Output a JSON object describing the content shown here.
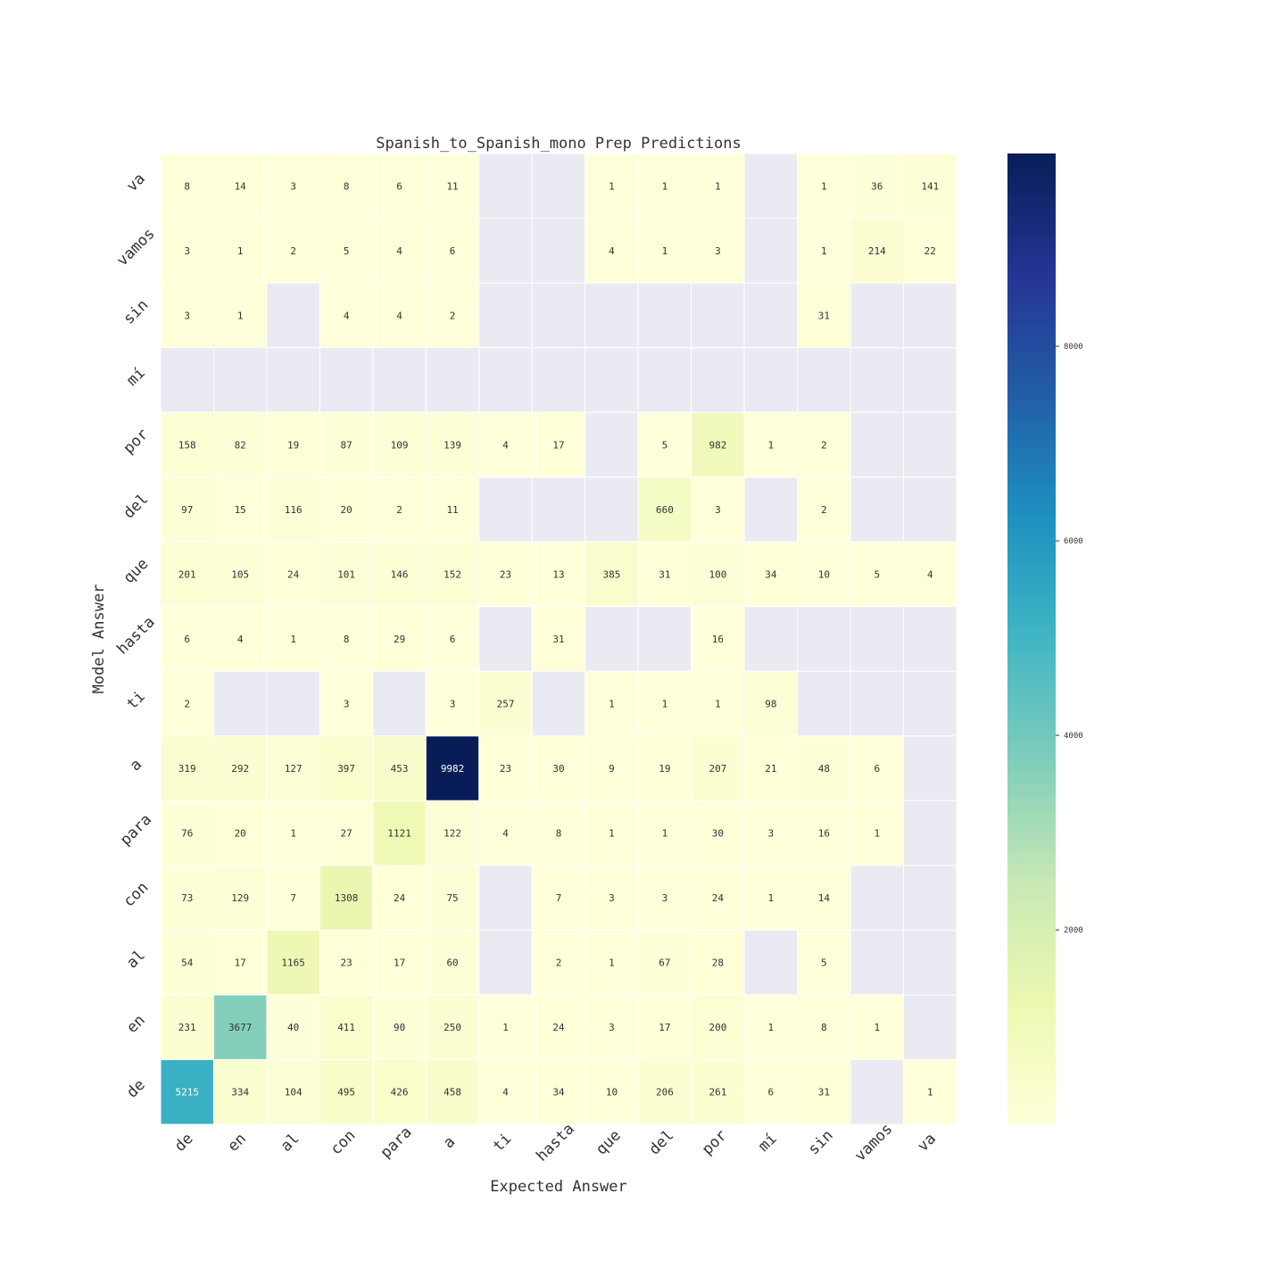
{
  "chart_data": {
    "type": "heatmap",
    "title": "Spanish_to_Spanish_mono Prep Predictions",
    "xlabel": "Expected Answer",
    "ylabel": "Model Answer",
    "x_categories": [
      "de",
      "en",
      "al",
      "con",
      "para",
      "a",
      "ti",
      "hasta",
      "que",
      "del",
      "por",
      "mí",
      "sin",
      "vamos",
      "va"
    ],
    "y_categories_top_to_bottom": [
      "va",
      "vamos",
      "sin",
      "mí",
      "por",
      "del",
      "que",
      "hasta",
      "ti",
      "a",
      "para",
      "con",
      "al",
      "en",
      "de"
    ],
    "values": [
      [
        8,
        14,
        3,
        8,
        6,
        11,
        null,
        null,
        1,
        1,
        1,
        null,
        1,
        36,
        141
      ],
      [
        3,
        1,
        2,
        5,
        4,
        6,
        null,
        null,
        4,
        1,
        3,
        null,
        1,
        214,
        22
      ],
      [
        3,
        1,
        null,
        4,
        4,
        2,
        null,
        null,
        null,
        null,
        null,
        null,
        31,
        null,
        null
      ],
      [
        null,
        null,
        null,
        null,
        null,
        null,
        null,
        null,
        null,
        null,
        null,
        null,
        null,
        null,
        null
      ],
      [
        158,
        82,
        19,
        87,
        109,
        139,
        4,
        17,
        null,
        5,
        982,
        1,
        2,
        null,
        null
      ],
      [
        97,
        15,
        116,
        20,
        2,
        11,
        null,
        null,
        null,
        660,
        3,
        null,
        2,
        null,
        null
      ],
      [
        201,
        105,
        24,
        101,
        146,
        152,
        23,
        13,
        385,
        31,
        100,
        34,
        10,
        5,
        4
      ],
      [
        6,
        4,
        1,
        8,
        29,
        6,
        null,
        31,
        null,
        null,
        16,
        null,
        null,
        null,
        null
      ],
      [
        2,
        null,
        null,
        3,
        null,
        3,
        257,
        null,
        1,
        1,
        1,
        98,
        null,
        null,
        null
      ],
      [
        319,
        292,
        127,
        397,
        453,
        9982,
        23,
        30,
        9,
        19,
        207,
        21,
        48,
        6,
        null
      ],
      [
        76,
        20,
        1,
        27,
        1121,
        122,
        4,
        8,
        1,
        1,
        30,
        3,
        16,
        1,
        null
      ],
      [
        73,
        129,
        7,
        1308,
        24,
        75,
        null,
        7,
        3,
        3,
        24,
        1,
        14,
        null,
        null
      ],
      [
        54,
        17,
        1165,
        23,
        17,
        60,
        null,
        2,
        1,
        67,
        28,
        null,
        5,
        null,
        null
      ],
      [
        231,
        3677,
        40,
        411,
        90,
        250,
        1,
        24,
        3,
        17,
        200,
        1,
        8,
        1,
        null
      ],
      [
        5215,
        334,
        104,
        495,
        426,
        458,
        4,
        34,
        10,
        206,
        261,
        6,
        31,
        null,
        1
      ]
    ],
    "colormap": "YlGnBu",
    "colorbar": {
      "min": 1,
      "max": 9982,
      "ticks": [
        2000,
        4000,
        6000,
        8000
      ]
    },
    "missing_color": "#eaeaf2",
    "grid_line_color": "#ffffff"
  }
}
